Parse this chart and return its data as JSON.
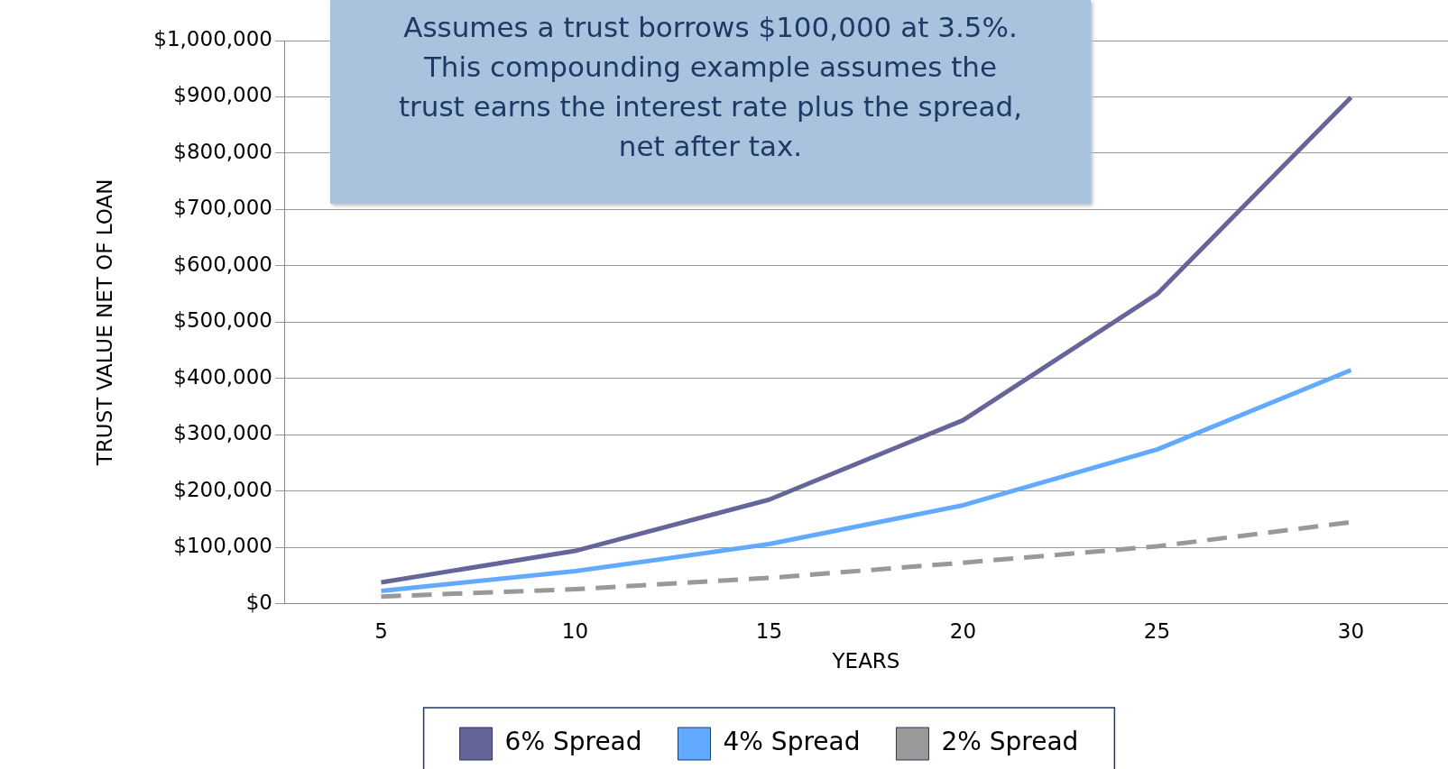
{
  "chart_data": {
    "type": "line",
    "xlabel": "YEARS",
    "ylabel": "TRUST VALUE NET OF LOAN",
    "annotations": [
      "Assumes a trust borrows $100,000 at 3.5%. This compounding example assumes the trust earns the interest rate plus the spread, net after tax."
    ],
    "categories": [
      "5",
      "10",
      "15",
      "20",
      "25",
      "30"
    ],
    "series": [
      {
        "name": "6% Spread",
        "color": "#65659a",
        "line_style": "solid",
        "values": [
          38000,
          94000,
          185000,
          326000,
          550000,
          899000
        ]
      },
      {
        "name": "4% Spread",
        "color": "#62aaff",
        "line_style": "solid",
        "values": [
          23000,
          58000,
          106000,
          175000,
          274000,
          415000
        ]
      },
      {
        "name": "2% Spread",
        "color": "#999999",
        "line_style": "dashed",
        "values": [
          13000,
          26000,
          46000,
          73000,
          102000,
          145000
        ]
      }
    ],
    "ylim": [
      0,
      1000000
    ],
    "yticks": [
      {
        "value": 0,
        "label": "$0"
      },
      {
        "value": 100000,
        "label": "$100,000"
      },
      {
        "value": 200000,
        "label": "$200,000"
      },
      {
        "value": 300000,
        "label": "$300,000"
      },
      {
        "value": 400000,
        "label": "$400,000"
      },
      {
        "value": 500000,
        "label": "$500,000"
      },
      {
        "value": 600000,
        "label": "$600,000"
      },
      {
        "value": 700000,
        "label": "$700,000"
      },
      {
        "value": 800000,
        "label": "$800,000"
      },
      {
        "value": 900000,
        "label": "$900,000"
      },
      {
        "value": 1000000,
        "label": "$1,000,000"
      }
    ],
    "grid": "y",
    "legend": "bottom",
    "marker": "none"
  }
}
